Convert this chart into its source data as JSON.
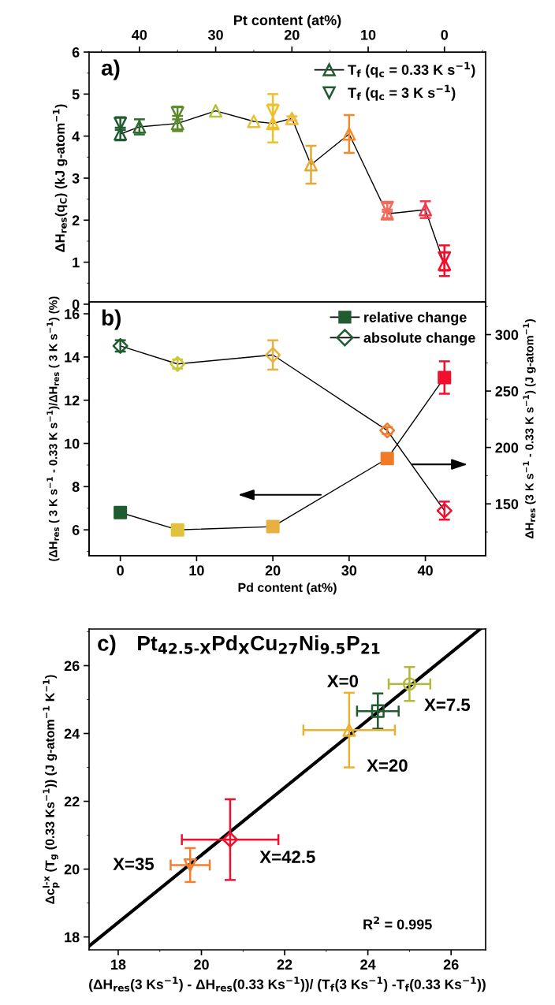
{
  "chart_data": [
    {
      "type": "scatter",
      "xlabel": "Pt content (at%)",
      "ylabel": "ΔH$_{res}$(q$_{C}$) (kJ g-atom$^{−1}$)",
      "xlim": [
        46.6,
        -5.4
      ],
      "xticks": [
        40,
        30,
        20,
        10,
        0
      ],
      "ylim": [
        0,
        6
      ],
      "yticks": [
        0,
        1,
        2,
        3,
        4,
        5,
        6
      ],
      "legend": "top right",
      "annotations": [
        "a)"
      ],
      "series": [
        {
          "name": "T$_{f}$ (q$_{c}$ = 0.33 K s$^{−1}$)",
          "type": "line",
          "marker": "triangle",
          "color": "#000000",
          "x": [
            42.5,
            40,
            35,
            30,
            25,
            22.5,
            20,
            17.5,
            12.5,
            7.5,
            2.5,
            0
          ],
          "values": [
            4.05,
            4.22,
            4.3,
            4.6,
            4.35,
            4.3,
            4.42,
            3.32,
            4.05,
            2.15,
            2.25,
            0.95
          ],
          "errors": [
            0.15,
            0.18,
            0.18,
            null,
            null,
            0.45,
            0.05,
            0.45,
            0.45,
            0.1,
            0.2,
            0.28
          ],
          "colors": [
            "#1f5c30",
            "#2e6b2e",
            "#5c8a2c",
            "#b3c13c",
            "#e2c23a",
            "#f0c02a",
            "#f2b838",
            "#eaa62e",
            "#f28a2c",
            "#f26a5a",
            "#f03a50",
            "#f0102e"
          ]
        },
        {
          "name": "T$_{f}$ (q$_{c}$ = 3 K s$^{−1}$)",
          "type": "scatter",
          "marker": "triangle_down",
          "color": "#1f5c30",
          "x": [
            42.5,
            35,
            22.5,
            7.5,
            0
          ],
          "values": [
            4.3,
            4.55,
            4.6,
            2.3,
            1.1
          ],
          "errors": [
            0.15,
            0.15,
            0.4,
            0.1,
            0.3
          ],
          "colors": [
            "#1f5c30",
            "#5c8a2c",
            "#f0c02a",
            "#f26a5a",
            "#f0102e"
          ]
        }
      ]
    },
    {
      "type": "line",
      "xlabel": "Pd content (at%)",
      "ylabel": "(ΔH$_{res}$ ( 3 K s$^{−1}$ - 0.33 K s$^{−1}$)/ΔH$_{res}$ ( 3 K s$^{−1}$) (%)",
      "y2label": "ΔH$_{res}$ (3 K s$^{−1}$ - 0.33 K s$^{−1}$) (J g-atom$^{−1}$)",
      "xlim": [
        -4.1,
        47.9
      ],
      "xticks": [
        0,
        10,
        20,
        30,
        40
      ],
      "ylim": [
        4.8,
        16.55
      ],
      "yticks": [
        6,
        8,
        10,
        12,
        14,
        16
      ],
      "y2lim": [
        104,
        329
      ],
      "y2ticks": [
        150,
        200,
        250,
        300
      ],
      "legend": "top right",
      "annotations": [
        "b)"
      ],
      "x": [
        0,
        7.5,
        20,
        35,
        42.5
      ],
      "series": [
        {
          "name": "relative change",
          "marker": "square",
          "color": "#000000",
          "values": [
            6.8,
            6.0,
            6.15,
            9.3,
            13.05
          ],
          "errors": [
            0.1,
            0.08,
            0.15,
            0.12,
            0.75
          ],
          "colors": [
            "#1f5c30",
            "#e2c23a",
            "#e8b040",
            "#f07a28",
            "#f0102e"
          ]
        },
        {
          "name": "absolute change",
          "marker": "diamond",
          "axis": "y2",
          "color": "#000000",
          "values": [
            290,
            274,
            282,
            215,
            144
          ],
          "errors": [
            5,
            4,
            13,
            3,
            8
          ],
          "colors": [
            "#1f5c30",
            "#c8c83a",
            "#e8b040",
            "#f07a28",
            "#f0102e"
          ]
        }
      ]
    },
    {
      "type": "scatter",
      "xlabel": "(ΔH$_{res}$(3 Ks$^{−1}$) - ΔH$_{res}$(0.33 Ks$^{−1}$))/ (T$_{f}$(3 Ks$^{−1}$) -T$_{f}$(0.33 Ks$^{−1}$))",
      "ylabel": "Δc$^{l-x}$$_{p}$ (T$_{g}$ (0.33 Ks$^{−1}$)) (J g-atom$^{−1}$ K$^{−1}$)",
      "xlim": [
        17.3,
        26.83
      ],
      "xticks": [
        18,
        20,
        22,
        24,
        26
      ],
      "ylim": [
        17.62,
        27.08
      ],
      "yticks": [
        18,
        20,
        22,
        24,
        26
      ],
      "annotations": [
        "c)",
        "Pt$_{42.5-X}$Pd$_{X}$Cu$_{27}$Ni$_{9.5}$P$_{21}$",
        "R$^{2}$ = 0.995",
        "X=0",
        "X=7.5",
        "X=20",
        "X=35",
        "X=42.5"
      ],
      "series": [
        {
          "type": "line",
          "marker": "none",
          "color": "#000000",
          "x": [
            17.3,
            26.7
          ],
          "values": [
            17.73,
            27.08
          ]
        },
        {
          "marker": "square",
          "color": "#1f5c30",
          "x": [
            24.24
          ],
          "values": [
            24.66
          ],
          "errors": [
            0.52
          ],
          "xerrors": [
            0.5
          ]
        },
        {
          "marker": "circle",
          "color": "#b3b83c",
          "x": [
            25.0
          ],
          "values": [
            25.46
          ],
          "errors": [
            0.5
          ],
          "xerrors": [
            0.5
          ]
        },
        {
          "marker": "triangle",
          "color": "#eab030",
          "x": [
            23.55
          ],
          "values": [
            24.1
          ],
          "errors": [
            1.1
          ],
          "xerrors": [
            1.1
          ]
        },
        {
          "marker": "triangle_down",
          "color": "#f08030",
          "x": [
            19.73
          ],
          "values": [
            20.12
          ],
          "errors": [
            0.5
          ],
          "xerrors": [
            0.47
          ]
        },
        {
          "marker": "diamond",
          "color": "#f0102e",
          "x": [
            20.69
          ],
          "values": [
            20.87
          ],
          "errors": [
            1.19
          ],
          "xerrors": [
            1.16
          ]
        }
      ]
    }
  ]
}
